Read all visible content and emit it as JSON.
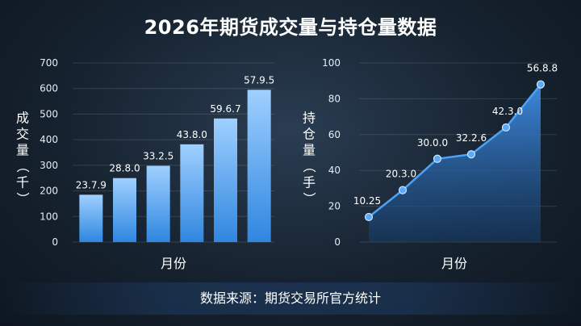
{
  "title": "2026年期货成交量与持仓量数据",
  "footer": "数据来源：期货交易所官方统计",
  "colors": {
    "bar_top": "#9fd0ff",
    "bar_bottom": "#2f86e0",
    "line": "#4ea2f5",
    "area_top": "#3f8fe8",
    "area_bottom": "#173e6c"
  },
  "chart_data": [
    {
      "type": "bar",
      "xlabel": "月份",
      "ylabel": "成交量（千）",
      "ylim": [
        0,
        700
      ],
      "yticks": [
        "0",
        "100",
        "200",
        "300",
        "400",
        "500",
        "600",
        "700"
      ],
      "values": [
        185,
        250,
        298,
        382,
        483,
        595
      ],
      "data_labels": [
        "23.7.9",
        "28.8.0",
        "33.2.5",
        "43.8.0",
        "59.6.7",
        "57.9.5"
      ],
      "grid": true
    },
    {
      "type": "area",
      "xlabel": "月份",
      "ylabel": "持仓量（手）",
      "ylim": [
        0,
        100
      ],
      "yticks": [
        "0",
        "20",
        "40",
        "60",
        "80",
        "100"
      ],
      "values": [
        14,
        29,
        46.5,
        49,
        64,
        88
      ],
      "data_labels": [
        "10.25",
        "20.3.0",
        "30.0.0",
        "32.2.6",
        "42.3.0",
        "56.8.8"
      ],
      "grid": true
    }
  ]
}
